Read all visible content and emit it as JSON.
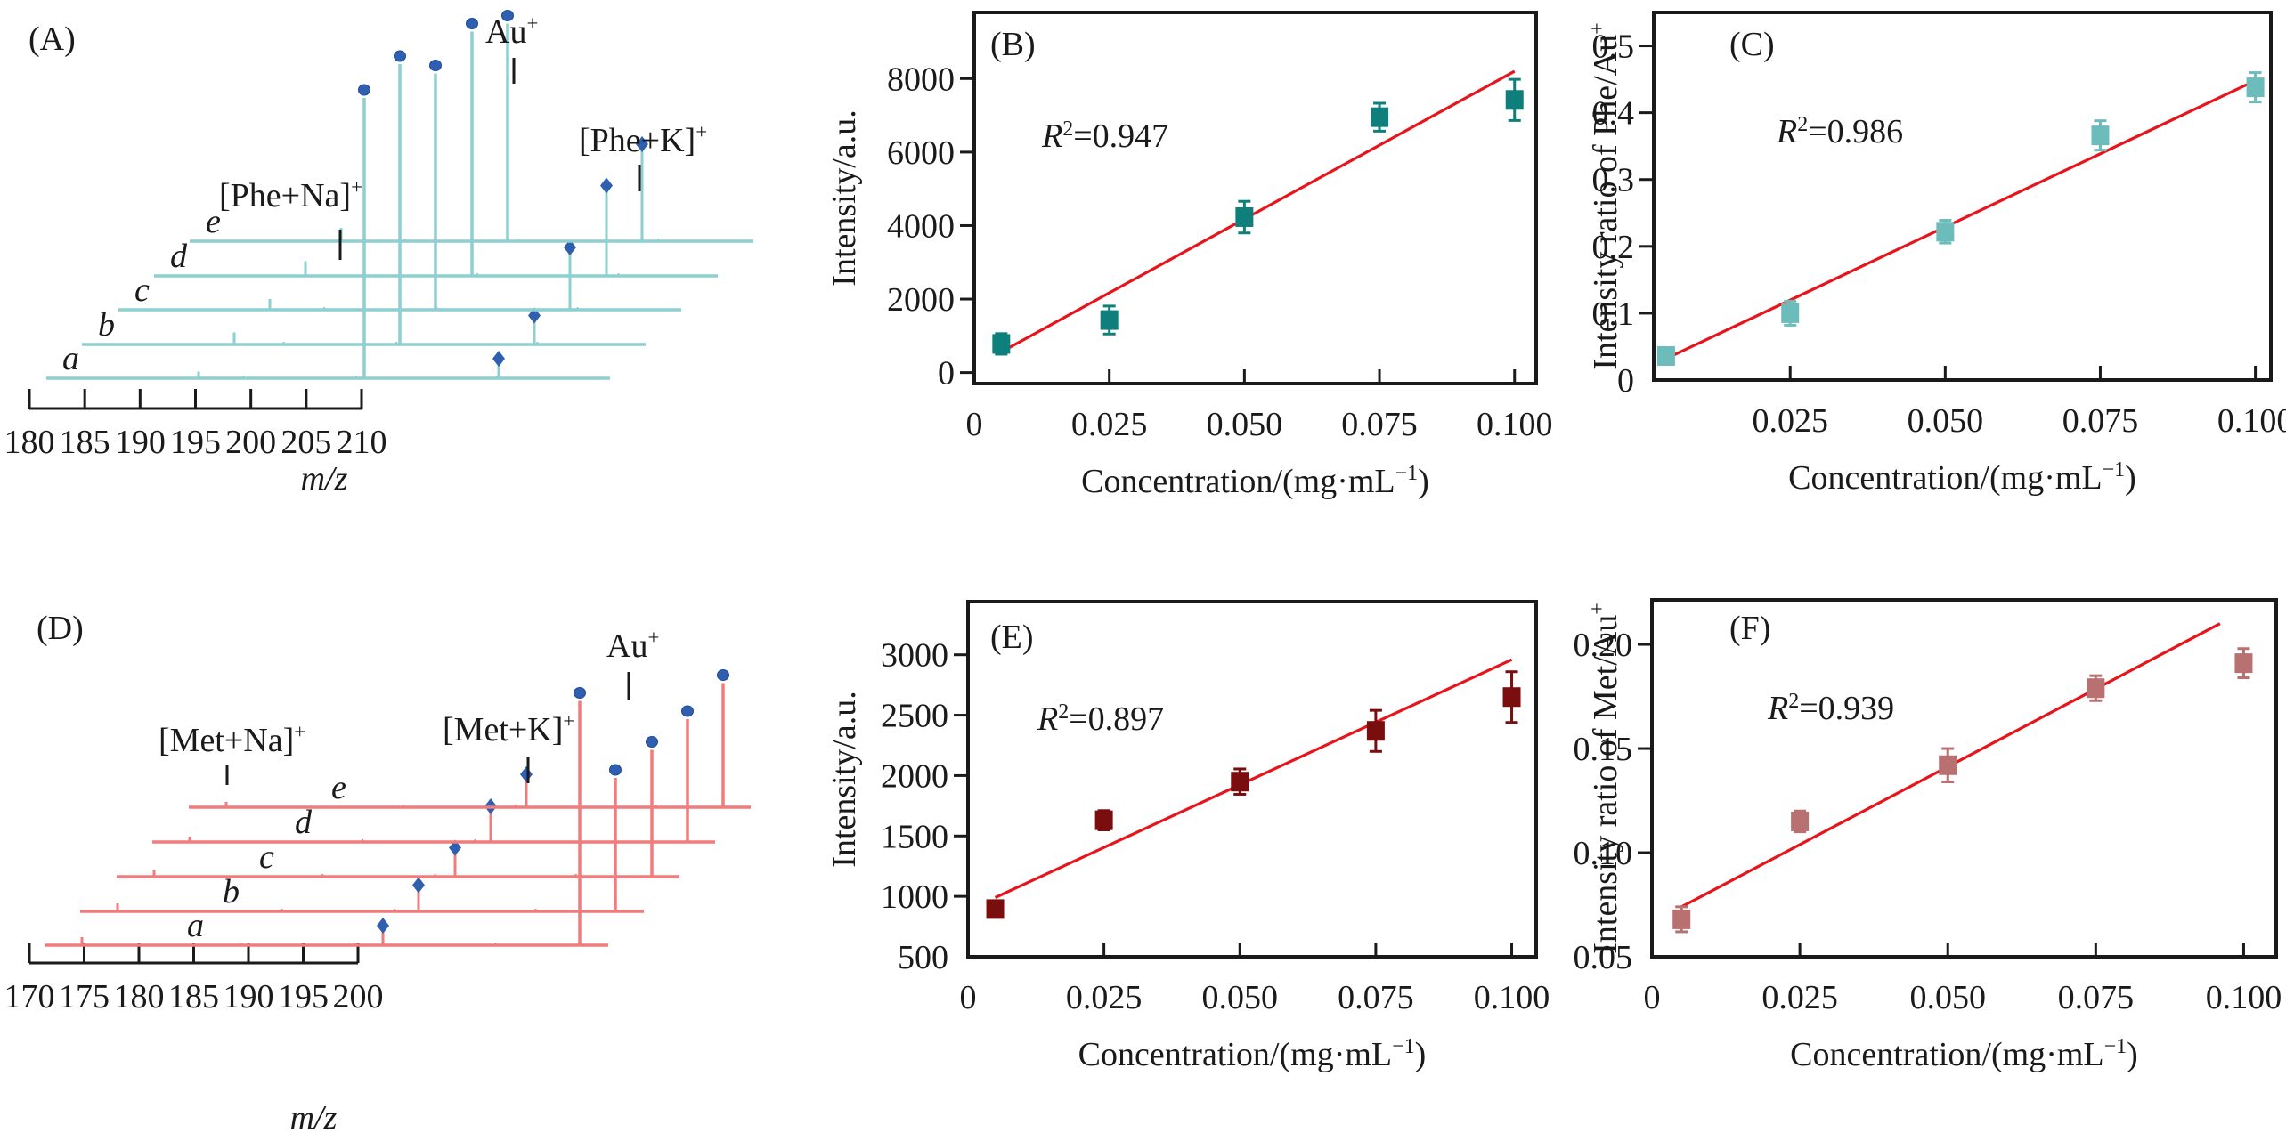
{
  "figure": {
    "panels": [
      "A",
      "B",
      "C",
      "D",
      "E",
      "F"
    ]
  },
  "chart_data": [
    {
      "id": "A",
      "type": "line",
      "subtype": "stacked-mass-spectra",
      "panel_label": "(A)",
      "xlabel": "m/z",
      "x_ticks": [
        180,
        185,
        190,
        195,
        200,
        205,
        210
      ],
      "xlim": [
        180,
        210
      ],
      "trace_color": "#8ecfd0",
      "marker_color": "#2f5fae",
      "traces": [
        {
          "label": "a",
          "na_peak_mz": 189.0,
          "k_peak_mz": 205.0,
          "au_peak_mz": 198.0,
          "na_height": 0.05,
          "k_height": 0.1,
          "au_height": 2.1
        },
        {
          "label": "b",
          "na_peak_mz": 189.0,
          "k_peak_mz": 205.0,
          "au_peak_mz": 198.0,
          "na_height": 0.09,
          "k_height": 0.17,
          "au_height": 2.1
        },
        {
          "label": "c",
          "na_peak_mz": 189.0,
          "k_peak_mz": 205.0,
          "au_peak_mz": 198.0,
          "na_height": 0.08,
          "k_height": 0.42,
          "au_height": 1.77
        },
        {
          "label": "d",
          "na_peak_mz": 189.0,
          "k_peak_mz": 205.0,
          "au_peak_mz": 198.0,
          "na_height": 0.11,
          "k_height": 0.63,
          "au_height": 1.83
        },
        {
          "label": "e",
          "na_peak_mz": 189.0,
          "k_peak_mz": 205.0,
          "au_peak_mz": 198.0,
          "na_height": 0.1,
          "k_height": 0.68,
          "au_height": 1.63
        }
      ],
      "annotations": [
        {
          "text": "Au",
          "sup": "+"
        },
        {
          "text": "[Phe+K]",
          "sup": "+"
        },
        {
          "text": "[Phe+Na]",
          "sup": "+"
        }
      ]
    },
    {
      "id": "B",
      "type": "scatter",
      "panel_label": "(B)",
      "xlabel": "Concentration/(mg·mL",
      "xlabel_sup": "−1",
      "xlabel_close": ")",
      "ylabel": "Intensity/a.u.",
      "xlim": [
        0,
        0.104
      ],
      "ylim": [
        -300,
        9800
      ],
      "x_ticks": [
        0,
        0.025,
        0.05,
        0.075,
        0.1
      ],
      "x_tick_labels": [
        "0",
        "0.025",
        "0.050",
        "0.075",
        "0.100"
      ],
      "y_ticks": [
        0,
        2000,
        4000,
        6000,
        8000
      ],
      "y_tick_labels": [
        "0",
        "2000",
        "4000",
        "6000",
        "8000"
      ],
      "marker_color": "#0f7f7c",
      "fit_color": "#e8141c",
      "x": [
        0.005,
        0.025,
        0.05,
        0.075,
        0.1
      ],
      "y": [
        780,
        1430,
        4230,
        6950,
        7420
      ],
      "yerr": [
        280,
        380,
        430,
        380,
        560
      ],
      "fit": {
        "x": [
          0.005,
          0.1
        ],
        "y": [
          560,
          8200
        ]
      },
      "annotation": {
        "prefix": "R",
        "sup": "2",
        "text": "=0.947"
      }
    },
    {
      "id": "C",
      "type": "scatter",
      "panel_label": "(C)",
      "xlabel": "Concentration/(mg·mL",
      "xlabel_sup": "−1",
      "xlabel_close": ")",
      "ylabel": "Intensity ratio of Phe/Au",
      "ylabel_sup": "+",
      "xlim": [
        0.003,
        0.1025
      ],
      "ylim": [
        0,
        0.55
      ],
      "x_ticks": [
        0.025,
        0.05,
        0.075,
        0.1
      ],
      "x_tick_labels": [
        "0.025",
        "0.050",
        "0.075",
        "0.100"
      ],
      "y_ticks": [
        0,
        0.1,
        0.2,
        0.3,
        0.4,
        0.5
      ],
      "y_tick_labels": [
        "0",
        "0.1",
        "0.2",
        "0.3",
        "0.4",
        "0.5"
      ],
      "marker_color": "#6cbcbc",
      "fit_color": "#e8141c",
      "x": [
        0.005,
        0.025,
        0.05,
        0.075,
        0.1
      ],
      "y": [
        0.036,
        0.1,
        0.222,
        0.366,
        0.438
      ],
      "yerr": [
        0.012,
        0.018,
        0.017,
        0.022,
        0.022
      ],
      "fit": {
        "x": [
          0.005,
          0.1
        ],
        "y": [
          0.032,
          0.448
        ]
      },
      "annotation": {
        "prefix": "R",
        "sup": "2",
        "text": "=0.986"
      }
    },
    {
      "id": "D",
      "type": "line",
      "subtype": "stacked-mass-spectra",
      "panel_label": "(D)",
      "xlabel": "m/z",
      "x_ticks": [
        170,
        175,
        180,
        185,
        190,
        195,
        200
      ],
      "xlim": [
        170,
        200
      ],
      "trace_color": "#f07c7c",
      "marker_color": "#2f5fae",
      "traces": [
        {
          "label": "a",
          "na_peak_mz": 173.0,
          "k_peak_mz": 189.0,
          "au_peak_mz": 198.0,
          "na_height": 0.06,
          "k_height": 0.1,
          "au_height": 1.83
        },
        {
          "label": "b",
          "na_peak_mz": 173.0,
          "k_peak_mz": 189.0,
          "au_peak_mz": 198.0,
          "na_height": 0.06,
          "k_height": 0.15,
          "au_height": 1.0
        },
        {
          "label": "c",
          "na_peak_mz": 173.0,
          "k_peak_mz": 189.0,
          "au_peak_mz": 198.0,
          "na_height": 0.05,
          "k_height": 0.17,
          "au_height": 0.95
        },
        {
          "label": "d",
          "na_peak_mz": 173.0,
          "k_peak_mz": 189.0,
          "au_peak_mz": 198.0,
          "na_height": 0.04,
          "k_height": 0.22,
          "au_height": 0.92
        },
        {
          "label": "e",
          "na_peak_mz": 173.0,
          "k_peak_mz": 189.0,
          "au_peak_mz": 198.0,
          "na_height": 0.04,
          "k_height": 0.2,
          "au_height": 0.93
        }
      ],
      "annotations": [
        {
          "text": "Au",
          "sup": "+"
        },
        {
          "text": "[Met+K]",
          "sup": "+"
        },
        {
          "text": "[Met+Na]",
          "sup": "+"
        }
      ]
    },
    {
      "id": "E",
      "type": "scatter",
      "panel_label": "(E)",
      "xlabel": "Concentration/(mg·mL",
      "xlabel_sup": "−1",
      "xlabel_close": ")",
      "ylabel": "Intensity/a.u.",
      "xlim": [
        0,
        0.1045
      ],
      "ylim": [
        500,
        3440
      ],
      "x_ticks": [
        0,
        0.025,
        0.05,
        0.075,
        0.1
      ],
      "x_tick_labels": [
        "0",
        "0.025",
        "0.050",
        "0.075",
        "0.100"
      ],
      "y_ticks": [
        500,
        1000,
        1500,
        2000,
        2500,
        3000
      ],
      "y_tick_labels": [
        "500",
        "1000",
        "1500",
        "2000",
        "2500",
        "3000"
      ],
      "marker_color": "#7a0d0d",
      "fit_color": "#e8141c",
      "x": [
        0.005,
        0.025,
        0.05,
        0.075,
        0.1
      ],
      "y": [
        895,
        1630,
        1950,
        2370,
        2650
      ],
      "yerr": [
        50,
        80,
        105,
        170,
        210
      ],
      "fit": {
        "x": [
          0.005,
          0.1
        ],
        "y": [
          990,
          2960
        ]
      },
      "annotation": {
        "prefix": "R",
        "sup": "2",
        "text": "=0.897"
      }
    },
    {
      "id": "F",
      "type": "scatter",
      "panel_label": "(F)",
      "xlabel": "Concentration/(mg·mL",
      "xlabel_sup": "−1",
      "xlabel_close": ")",
      "ylabel": "Intensity ratio of Met/Au",
      "ylabel_sup": "+",
      "xlim": [
        0,
        0.1055
      ],
      "ylim": [
        0.05,
        0.2214
      ],
      "x_ticks": [
        0,
        0.025,
        0.05,
        0.075,
        0.1
      ],
      "x_tick_labels": [
        "0",
        "0.025",
        "0.050",
        "0.075",
        "0.100"
      ],
      "y_ticks": [
        0.05,
        0.1,
        0.15,
        0.2
      ],
      "y_tick_labels": [
        "0.05",
        "0.10",
        "0.15",
        "0.20"
      ],
      "marker_color": "#b87070",
      "fit_color": "#e8141c",
      "x": [
        0.005,
        0.025,
        0.05,
        0.075,
        0.1
      ],
      "y": [
        0.068,
        0.115,
        0.142,
        0.179,
        0.191
      ],
      "yerr": [
        0.006,
        0.005,
        0.008,
        0.006,
        0.007
      ],
      "fit": {
        "x": [
          0.005,
          0.096
        ],
        "y": [
          0.074,
          0.21
        ]
      },
      "annotation": {
        "prefix": "R",
        "sup": "2",
        "text": "=0.939"
      }
    }
  ]
}
